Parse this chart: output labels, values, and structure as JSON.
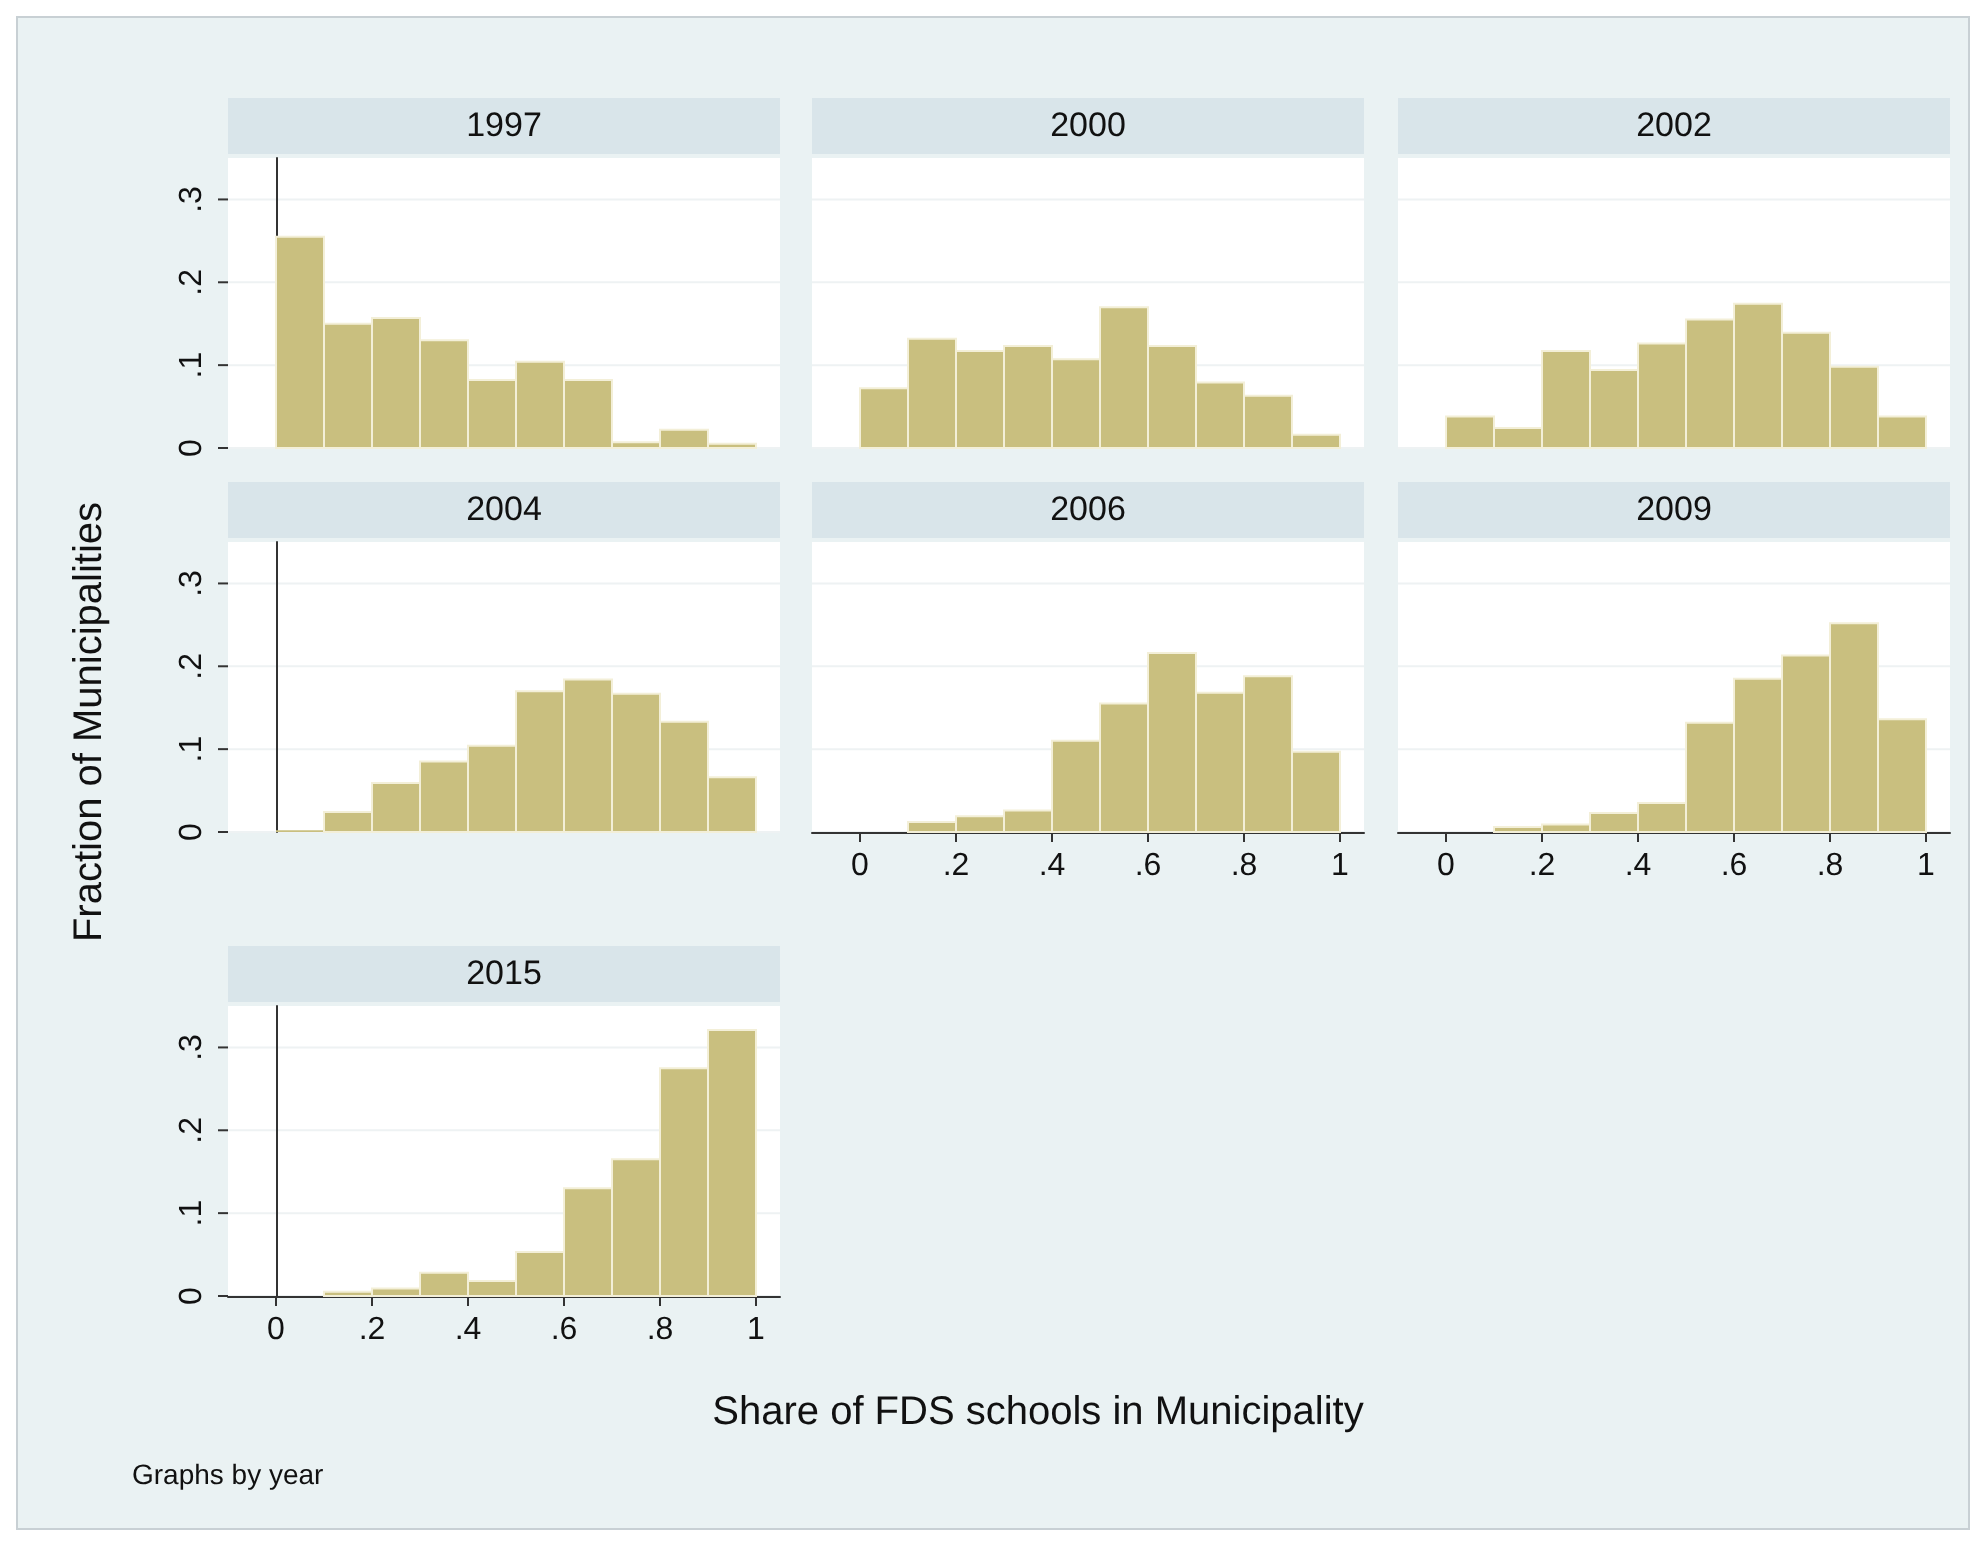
{
  "chart_data": [
    {
      "type": "histogram",
      "title": "1997",
      "bins": [
        0,
        0.1,
        0.2,
        0.3,
        0.4,
        0.5,
        0.6,
        0.7,
        0.8,
        0.9,
        1
      ],
      "values": [
        0.255,
        0.15,
        0.157,
        0.13,
        0.082,
        0.104,
        0.082,
        0.007,
        0.022,
        0.005
      ],
      "color": "#c9bf7f",
      "xlim": [
        -0.1,
        1.05
      ],
      "ylim": [
        0,
        0.35
      ],
      "yticks": [
        0,
        {
          "value": 0.1,
          "label": ".1"
        },
        {
          "value": 0.2,
          "label": ".2"
        },
        {
          "value": 0.3,
          "label": ".3"
        }
      ],
      "grid": "y",
      "tick_labels": "y"
    },
    {
      "type": "histogram",
      "title": "2000",
      "bins": [
        0,
        0.1,
        0.2,
        0.3,
        0.4,
        0.5,
        0.6,
        0.7,
        0.8,
        0.9,
        1
      ],
      "values": [
        0.072,
        0.132,
        0.117,
        0.123,
        0.107,
        0.17,
        0.123,
        0.079,
        0.063,
        0.016
      ],
      "color": "#c9bf7f",
      "xlim": [
        -0.1,
        1.05
      ],
      "ylim": [
        0,
        0.35
      ],
      "yticks": [
        0,
        0.1,
        0.2,
        0.3
      ],
      "grid": "y",
      "tick_labels": false
    },
    {
      "type": "histogram",
      "title": "2002",
      "bins": [
        0,
        0.1,
        0.2,
        0.3,
        0.4,
        0.5,
        0.6,
        0.7,
        0.8,
        0.9,
        1
      ],
      "values": [
        0.038,
        0.024,
        0.117,
        0.094,
        0.126,
        0.155,
        0.174,
        0.139,
        0.098,
        0.038
      ],
      "color": "#c9bf7f",
      "xlim": [
        -0.1,
        1.05
      ],
      "ylim": [
        0,
        0.35
      ],
      "yticks": [
        0,
        0.1,
        0.2,
        0.3
      ],
      "grid": "y",
      "tick_labels": false
    },
    {
      "type": "histogram",
      "title": "2004",
      "ylabel": "Fraction of Municipalities",
      "bins": [
        0,
        0.1,
        0.2,
        0.3,
        0.4,
        0.5,
        0.6,
        0.7,
        0.8,
        0.9,
        1
      ],
      "values": [
        0.002,
        0.024,
        0.059,
        0.085,
        0.104,
        0.17,
        0.184,
        0.167,
        0.133,
        0.066
      ],
      "color": "#c9bf7f",
      "xlim": [
        -0.1,
        1.05
      ],
      "ylim": [
        0,
        0.35
      ],
      "yticks": [
        0,
        {
          "value": 0.1,
          "label": ".1"
        },
        {
          "value": 0.2,
          "label": ".2"
        },
        {
          "value": 0.3,
          "label": ".3"
        }
      ],
      "grid": "y",
      "tick_labels": "y"
    },
    {
      "type": "histogram",
      "title": "2006",
      "bins": [
        0,
        0.1,
        0.2,
        0.3,
        0.4,
        0.5,
        0.6,
        0.7,
        0.8,
        0.9,
        1
      ],
      "values": [
        0,
        0.012,
        0.019,
        0.026,
        0.11,
        0.155,
        0.216,
        0.168,
        0.188,
        0.097
      ],
      "color": "#c9bf7f",
      "xlim": [
        -0.1,
        1.05
      ],
      "ylim": [
        0,
        0.35
      ],
      "xticks": [
        {
          "value": 0,
          "label": "0"
        },
        {
          "value": 0.2,
          "label": ".2"
        },
        {
          "value": 0.4,
          "label": ".4"
        },
        {
          "value": 0.6,
          "label": ".6"
        },
        {
          "value": 0.8,
          "label": ".8"
        },
        {
          "value": 1,
          "label": "1"
        }
      ],
      "yticks": [
        0,
        0.1,
        0.2,
        0.3
      ],
      "grid": "y",
      "tick_labels": "x"
    },
    {
      "type": "histogram",
      "title": "2009",
      "bins": [
        0,
        0.1,
        0.2,
        0.3,
        0.4,
        0.5,
        0.6,
        0.7,
        0.8,
        0.9,
        1
      ],
      "values": [
        0,
        0.006,
        0.009,
        0.023,
        0.035,
        0.132,
        0.185,
        0.213,
        0.252,
        0.136
      ],
      "color": "#c9bf7f",
      "xlim": [
        -0.1,
        1.05
      ],
      "ylim": [
        0,
        0.35
      ],
      "xticks": [
        {
          "value": 0,
          "label": "0"
        },
        {
          "value": 0.2,
          "label": ".2"
        },
        {
          "value": 0.4,
          "label": ".4"
        },
        {
          "value": 0.6,
          "label": ".6"
        },
        {
          "value": 0.8,
          "label": ".8"
        },
        {
          "value": 1,
          "label": "1"
        }
      ],
      "yticks": [
        0,
        0.1,
        0.2,
        0.3
      ],
      "grid": "y",
      "tick_labels": "x"
    },
    {
      "type": "histogram",
      "title": "2015",
      "xlabel": "Share of FDS schools in Municipality",
      "annotations": [
        "Graphs by year"
      ],
      "bins": [
        0,
        0.1,
        0.2,
        0.3,
        0.4,
        0.5,
        0.6,
        0.7,
        0.8,
        0.9,
        1
      ],
      "values": [
        0,
        0.005,
        0.009,
        0.028,
        0.018,
        0.053,
        0.13,
        0.165,
        0.275,
        0.321
      ],
      "color": "#c9bf7f",
      "xlim": [
        -0.1,
        1.05
      ],
      "ylim": [
        0,
        0.35
      ],
      "xticks": [
        {
          "value": 0,
          "label": "0"
        },
        {
          "value": 0.2,
          "label": ".2"
        },
        {
          "value": 0.4,
          "label": ".4"
        },
        {
          "value": 0.6,
          "label": ".6"
        },
        {
          "value": 0.8,
          "label": ".8"
        },
        {
          "value": 1,
          "label": "1"
        }
      ],
      "yticks": [
        0,
        {
          "value": 0.1,
          "label": ".1"
        },
        {
          "value": 0.2,
          "label": ".2"
        },
        {
          "value": 0.3,
          "label": ".3"
        }
      ],
      "grid": "y"
    }
  ]
}
